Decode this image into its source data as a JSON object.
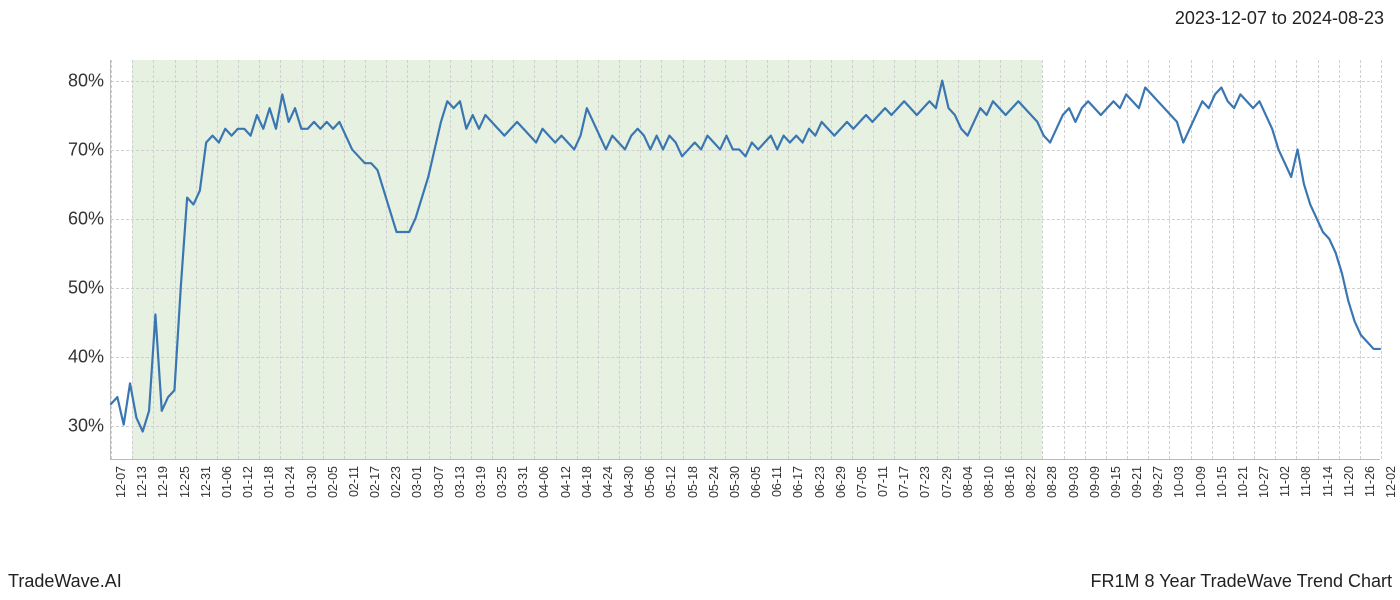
{
  "header": {
    "date_range": "2023-12-07 to 2024-08-23"
  },
  "footer": {
    "left": "TradeWave.AI",
    "right": "FR1M 8 Year TradeWave Trend Chart"
  },
  "chart": {
    "type": "line",
    "background_color": "#ffffff",
    "grid_color": "#cfcfcf",
    "axis_color": "#bbbbbb",
    "line_color": "#3a76b1",
    "line_width": 2.2,
    "shaded_fill": "#dae9d3",
    "shaded_opacity": 0.65,
    "y": {
      "min": 25,
      "max": 83,
      "ticks": [
        30,
        40,
        50,
        60,
        70,
        80
      ],
      "tick_suffix": "%",
      "label_fontsize": 18,
      "label_color": "#333333"
    },
    "x": {
      "labels": [
        "12-07",
        "12-13",
        "12-19",
        "12-25",
        "12-31",
        "01-06",
        "01-12",
        "01-18",
        "01-24",
        "01-30",
        "02-05",
        "02-11",
        "02-17",
        "02-23",
        "03-01",
        "03-07",
        "03-13",
        "03-19",
        "03-25",
        "03-31",
        "04-06",
        "04-12",
        "04-18",
        "04-24",
        "04-30",
        "05-06",
        "05-12",
        "05-18",
        "05-24",
        "05-30",
        "06-05",
        "06-11",
        "06-17",
        "06-23",
        "06-29",
        "07-05",
        "07-11",
        "07-17",
        "07-23",
        "07-29",
        "08-04",
        "08-10",
        "08-16",
        "08-22",
        "08-28",
        "09-03",
        "09-09",
        "09-15",
        "09-21",
        "09-27",
        "10-03",
        "10-09",
        "10-15",
        "10-21",
        "10-27",
        "11-02",
        "11-08",
        "11-14",
        "11-20",
        "11-26",
        "12-02"
      ],
      "label_fontsize": 12.5,
      "label_color": "#333333",
      "label_rotation_deg": -90
    },
    "shaded_region": {
      "start_index": 1,
      "end_index": 44
    },
    "series": {
      "values": [
        33,
        34,
        30,
        36,
        31,
        29,
        32,
        46,
        32,
        34,
        35,
        50,
        63,
        62,
        64,
        71,
        72,
        71,
        73,
        72,
        73,
        73,
        72,
        75,
        73,
        76,
        73,
        78,
        74,
        76,
        73,
        73,
        74,
        73,
        74,
        73,
        74,
        72,
        70,
        69,
        68,
        68,
        67,
        64,
        61,
        58,
        58,
        58,
        60,
        63,
        66,
        70,
        74,
        77,
        76,
        77,
        73,
        75,
        73,
        75,
        74,
        73,
        72,
        73,
        74,
        73,
        72,
        71,
        73,
        72,
        71,
        72,
        71,
        70,
        72,
        76,
        74,
        72,
        70,
        72,
        71,
        70,
        72,
        73,
        72,
        70,
        72,
        70,
        72,
        71,
        69,
        70,
        71,
        70,
        72,
        71,
        70,
        72,
        70,
        70,
        69,
        71,
        70,
        71,
        72,
        70,
        72,
        71,
        72,
        71,
        73,
        72,
        74,
        73,
        72,
        73,
        74,
        73,
        74,
        75,
        74,
        75,
        76,
        75,
        76,
        77,
        76,
        75,
        76,
        77,
        76,
        80,
        76,
        75,
        73,
        72,
        74,
        76,
        75,
        77,
        76,
        75,
        76,
        77,
        76,
        75,
        74,
        72,
        71,
        73,
        75,
        76,
        74,
        76,
        77,
        76,
        75,
        76,
        77,
        76,
        78,
        77,
        76,
        79,
        78,
        77,
        76,
        75,
        74,
        71,
        73,
        75,
        77,
        76,
        78,
        79,
        77,
        76,
        78,
        77,
        76,
        77,
        75,
        73,
        70,
        68,
        66,
        70,
        65,
        62,
        60,
        58,
        57,
        55,
        52,
        48,
        45,
        43,
        42,
        41,
        41
      ]
    }
  }
}
